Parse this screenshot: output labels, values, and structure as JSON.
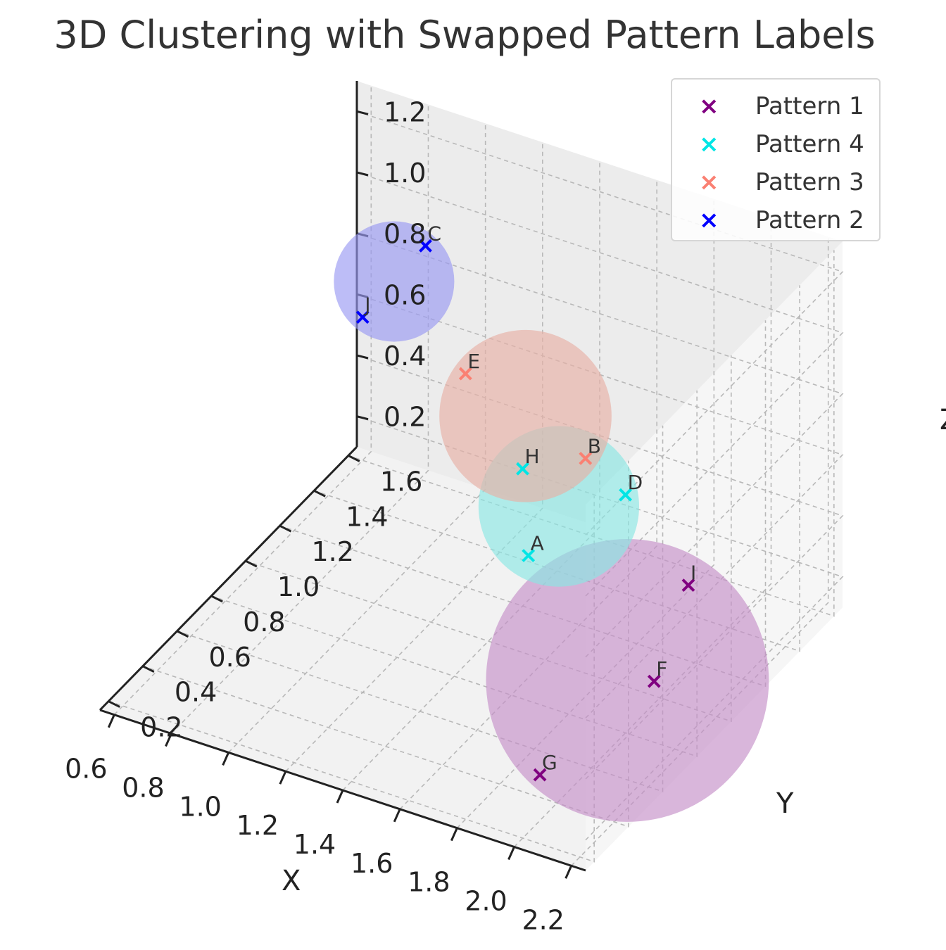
{
  "chart_data": {
    "type": "scatter",
    "title": "3D Clustering with Swapped Pattern Labels",
    "xlabel": "X",
    "ylabel": "Y",
    "zlabel": "Z",
    "xlim": [
      0.6,
      2.2
    ],
    "ylim": [
      0.2,
      1.6
    ],
    "zlim": [
      0.2,
      1.2
    ],
    "x_ticks": [
      "0.6",
      "0.8",
      "1.0",
      "1.2",
      "1.4",
      "1.6",
      "1.8",
      "2.0",
      "2.2"
    ],
    "y_ticks": [
      "0.2",
      "0.4",
      "0.6",
      "0.8",
      "1.0",
      "1.2",
      "1.4",
      "1.6"
    ],
    "z_ticks": [
      "0.2",
      "0.4",
      "0.6",
      "0.8",
      "1.0",
      "1.2"
    ],
    "grid": true,
    "legend_position": "top-right",
    "series": [
      {
        "name": "Pattern 1",
        "color": "#800080",
        "sphere_color": "#c48fc8",
        "points": [
          {
            "label": "G",
            "x": 2.0,
            "y": 0.3,
            "z": 0.25
          },
          {
            "label": "F",
            "x": 2.1,
            "y": 0.8,
            "z": 0.3
          },
          {
            "label": "I",
            "x": 2.1,
            "y": 1.0,
            "z": 0.5
          }
        ]
      },
      {
        "name": "Pattern 4",
        "color": "#00e5e5",
        "sphere_color": "#8ae6e4",
        "points": [
          {
            "label": "A",
            "x": 1.6,
            "y": 0.9,
            "z": 0.5
          },
          {
            "label": "D",
            "x": 1.7,
            "y": 1.3,
            "z": 0.5
          },
          {
            "label": "H",
            "x": 1.4,
            "y": 1.2,
            "z": 0.55
          }
        ]
      },
      {
        "name": "Pattern 3",
        "color": "#fa8072",
        "sphere_color": "#e8b0a6",
        "points": [
          {
            "label": "E",
            "x": 1.2,
            "y": 1.2,
            "z": 0.8
          },
          {
            "label": "B",
            "x": 1.5,
            "y": 1.4,
            "z": 0.5
          }
        ]
      },
      {
        "name": "Pattern 2",
        "color": "#0000ff",
        "sphere_color": "#9a9af2",
        "points": [
          {
            "label": "J",
            "x": 0.9,
            "y": 1.1,
            "z": 0.95
          },
          {
            "label": "C",
            "x": 1.0,
            "y": 1.3,
            "z": 1.1
          }
        ]
      }
    ]
  }
}
